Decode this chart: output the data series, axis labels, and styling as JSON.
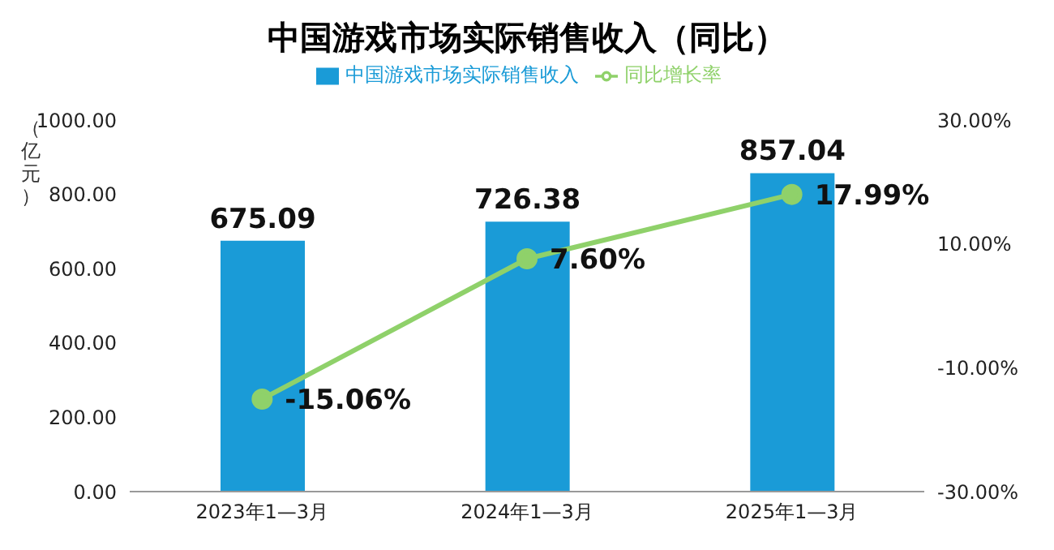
{
  "chart_data": {
    "type": "bar",
    "title": "中国游戏市场实际销售收入（同比）",
    "ylabel": "（亿元）",
    "categories": [
      "2023年1—3月",
      "2024年1—3月",
      "2025年1—3月"
    ],
    "series": [
      {
        "name": "中国游戏市场实际销售收入",
        "color": "#1a9bd7",
        "values": [
          675.09,
          726.38,
          857.04
        ],
        "value_labels": [
          "675.09",
          "726.38",
          "857.04"
        ]
      },
      {
        "name": "同比增长率",
        "type": "line",
        "axis": "y2",
        "color": "#8fd16a",
        "marker": "circle",
        "values": [
          -15.06,
          7.6,
          17.99
        ],
        "value_labels": [
          "-15.06%",
          "7.60%",
          "17.99%"
        ]
      }
    ],
    "ylim": [
      0,
      1000
    ],
    "yticks": [
      {
        "value": 0,
        "label": "0.00"
      },
      {
        "value": 200,
        "label": "200.00"
      },
      {
        "value": 400,
        "label": "400.00"
      },
      {
        "value": 600,
        "label": "600.00"
      },
      {
        "value": 800,
        "label": "800.00"
      },
      {
        "value": 1000,
        "label": "1000.00"
      }
    ],
    "y2lim": [
      -30,
      30
    ],
    "y2ticks": [
      {
        "value": -30,
        "label": "-30.00%"
      },
      {
        "value": -10,
        "label": "-10.00%"
      },
      {
        "value": 10,
        "label": "10.00%"
      },
      {
        "value": 30,
        "label": "30.00%"
      }
    ],
    "legend": "top",
    "grid": false
  }
}
